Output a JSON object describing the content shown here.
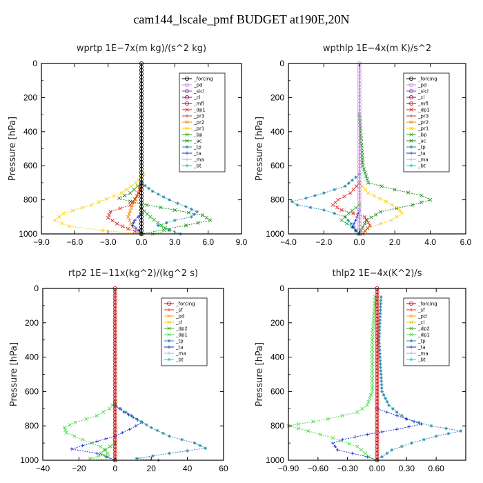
{
  "title": "cam144_lscale_pmf  BUDGET at190E,20N",
  "colors": {
    "forcing": "#000000",
    "forcing2": "#cc0000",
    "pd": "#cc88dd",
    "sicl": "#7744bb",
    "cl": "#880044",
    "mfl": "#aa0033",
    "dp1": "#dd2222",
    "pr3": "#cc3311",
    "pr2": "#ee8800",
    "pr1": "#ffcc00",
    "bp": "#22aa22",
    "ac": "#118811",
    "tp": "#2288aa",
    "ta": "#1122cc",
    "ma": "#88bbdd",
    "bt": "#22cccc",
    "sf": "#ee2222",
    "pd2": "#ffaa00",
    "cl2": "#eecc00",
    "dp2": "#33aa33",
    "dp1g": "#44dd44"
  },
  "chart_data": [
    {
      "type": "line",
      "title": "wprtp   1E−7x(m kg)/(s^2 kg)",
      "ylabel": "Pressure [hPa]",
      "xlim": [
        -9,
        9
      ],
      "ylim": [
        1000,
        0
      ],
      "xticks": [
        "-9.0",
        "-6.0",
        "-3.0",
        "0.0",
        "3.0",
        "6.0",
        "9.0"
      ],
      "yticks": [
        "0",
        "200",
        "400",
        "600",
        "800",
        "1000"
      ],
      "legend": [
        "_forcing",
        "_pd",
        "_sicl",
        "_cl",
        "_mfl",
        "_dp1",
        "_pr3",
        "_pr2",
        "_pr1",
        "_bp",
        "_ac",
        "_tp",
        "_ta",
        "_ma",
        "_bt"
      ],
      "legend_position": "top-right",
      "series": [
        {
          "name": "_pr1",
          "color": "pr1",
          "marker": "x",
          "points": [
            [
              0.2,
              650
            ],
            [
              -0.5,
              700
            ],
            [
              -1.8,
              760
            ],
            [
              -4.5,
              830
            ],
            [
              -7.0,
              880
            ],
            [
              -7.8,
              920
            ],
            [
              -6.5,
              955
            ],
            [
              -3.5,
              980
            ],
            [
              0,
              1000
            ]
          ]
        },
        {
          "name": "_pr2",
          "color": "pr2",
          "marker": "x",
          "points": [
            [
              0,
              700
            ],
            [
              -0.3,
              760
            ],
            [
              -0.8,
              830
            ],
            [
              -1.2,
              900
            ],
            [
              -0.8,
              960
            ],
            [
              0,
              1000
            ]
          ]
        },
        {
          "name": "_dp1",
          "color": "dp1",
          "marker": "x",
          "points": [
            [
              0,
              720
            ],
            [
              -0.4,
              780
            ],
            [
              -1.0,
              830
            ],
            [
              -2.8,
              870
            ],
            [
              -3.0,
              905
            ],
            [
              -2.2,
              940
            ],
            [
              -1.2,
              970
            ],
            [
              0,
              1000
            ]
          ]
        },
        {
          "name": "_ac",
          "color": "ac",
          "marker": "x",
          "points": [
            [
              0,
              700
            ],
            [
              -1.0,
              760
            ],
            [
              -2.0,
              790
            ],
            [
              -1.0,
              810
            ],
            [
              0.5,
              830
            ],
            [
              3.0,
              860
            ],
            [
              5.5,
              890
            ],
            [
              6.2,
              920
            ],
            [
              4.0,
              950
            ],
            [
              2.0,
              975
            ],
            [
              0,
              1000
            ]
          ]
        },
        {
          "name": "_tp",
          "color": "tp",
          "marker": "star",
          "points": [
            [
              0,
              700
            ],
            [
              1.0,
              750
            ],
            [
              2.5,
              800
            ],
            [
              4.0,
              840
            ],
            [
              5.0,
              870
            ],
            [
              4.5,
              900
            ],
            [
              3.0,
              920
            ],
            [
              1.5,
              950
            ],
            [
              2.5,
              975
            ],
            [
              3.5,
              1000
            ]
          ]
        },
        {
          "name": "_ta",
          "color": "ta",
          "marker": "plus",
          "points": [
            [
              0,
              880
            ],
            [
              -0.6,
              920
            ],
            [
              -0.8,
              950
            ],
            [
              -0.2,
              980
            ],
            [
              0,
              1000
            ]
          ]
        },
        {
          "name": "_bp",
          "color": "bp",
          "marker": "x",
          "points": [
            [
              0,
              850
            ],
            [
              0.8,
              900
            ],
            [
              1.8,
              950
            ],
            [
              2.5,
              980
            ],
            [
              1.0,
              1000
            ]
          ]
        },
        {
          "name": "_forcing",
          "color": "forcing",
          "marker": "o",
          "points": [
            [
              0,
              0
            ],
            [
              0,
              1000
            ]
          ]
        }
      ]
    },
    {
      "type": "line",
      "title": "wpthlp   1E−4x(m K)/s^2",
      "ylabel": "Pressure [hPa]",
      "xlim": [
        -4,
        6
      ],
      "ylim": [
        1000,
        0
      ],
      "xticks": [
        "-4.0",
        "-2.0",
        "0.0",
        "2.0",
        "4.0",
        "6.0"
      ],
      "yticks": [
        "0",
        "200",
        "400",
        "600",
        "800",
        "1000"
      ],
      "legend": [
        "_forcing",
        "_pd",
        "_sicl",
        "_cl",
        "_mfl",
        "_dp1",
        "_pr3",
        "_pr2",
        "_pr1",
        "_bp",
        "_ac",
        "_tp",
        "_ta",
        "_ma",
        "_bt"
      ],
      "legend_position": "top-right",
      "series": [
        {
          "name": "_ac",
          "color": "ac",
          "marker": "x",
          "points": [
            [
              0,
              300
            ],
            [
              0.2,
              600
            ],
            [
              0.5,
              700
            ],
            [
              2.0,
              740
            ],
            [
              3.5,
              775
            ],
            [
              4.0,
              800
            ],
            [
              3.0,
              830
            ],
            [
              1.2,
              870
            ],
            [
              0.4,
              920
            ],
            [
              0.2,
              960
            ],
            [
              0,
              1000
            ]
          ]
        },
        {
          "name": "_tp",
          "color": "tp",
          "marker": "star",
          "points": [
            [
              0,
              650
            ],
            [
              -0.8,
              720
            ],
            [
              -2.0,
              760
            ],
            [
              -3.0,
              790
            ],
            [
              -3.8,
              810
            ],
            [
              -3.5,
              830
            ],
            [
              -2.0,
              860
            ],
            [
              -0.8,
              900
            ],
            [
              -0.3,
              960
            ],
            [
              -0.1,
              1000
            ]
          ]
        },
        {
          "name": "_pr1",
          "color": "pr1",
          "marker": "x",
          "points": [
            [
              0,
              700
            ],
            [
              0.5,
              760
            ],
            [
              1.5,
              810
            ],
            [
              2.2,
              850
            ],
            [
              2.4,
              880
            ],
            [
              1.8,
              920
            ],
            [
              0.6,
              960
            ],
            [
              0,
              1000
            ]
          ]
        },
        {
          "name": "_dp1",
          "color": "dp1",
          "marker": "x",
          "points": [
            [
              0,
              700
            ],
            [
              -0.5,
              760
            ],
            [
              -1.2,
              800
            ],
            [
              -1.5,
              830
            ],
            [
              -1.0,
              860
            ],
            [
              0.3,
              900
            ],
            [
              0.6,
              950
            ],
            [
              0.2,
              1000
            ]
          ]
        },
        {
          "name": "_bp",
          "color": "bp",
          "marker": "x",
          "points": [
            [
              0,
              830
            ],
            [
              -0.6,
              880
            ],
            [
              -1.0,
              920
            ],
            [
              -0.4,
              960
            ],
            [
              0,
              1000
            ]
          ]
        },
        {
          "name": "_ta",
          "color": "ta",
          "marker": "plus",
          "points": [
            [
              0,
              860
            ],
            [
              -0.2,
              920
            ],
            [
              -0.4,
              960
            ],
            [
              0,
              1000
            ]
          ]
        },
        {
          "name": "_forcing",
          "color": "pd",
          "marker": "o",
          "points": [
            [
              0,
              0
            ],
            [
              0,
              1000
            ]
          ]
        }
      ]
    },
    {
      "type": "line",
      "title": "rtp2   1E−11x(kg^2)/(kg^2 s)",
      "ylabel": "Pressure [hPa]",
      "xlim": [
        -40,
        60
      ],
      "ylim": [
        1000,
        0
      ],
      "xticks": [
        "-40",
        "-20",
        "0",
        "20",
        "40",
        "60"
      ],
      "yticks": [
        "0",
        "200",
        "400",
        "600",
        "800",
        "1000"
      ],
      "legend": [
        "_forcing",
        "_sf",
        "_pd",
        "_cl",
        "_dp2",
        "_dp1",
        "_tp",
        "_ta",
        "_ma",
        "_bt"
      ],
      "legend_position": "top-right",
      "series": [
        {
          "name": "_dp1",
          "color": "dp1g",
          "marker": "x",
          "points": [
            [
              0,
              660
            ],
            [
              -3,
              700
            ],
            [
              -10,
              740
            ],
            [
              -22,
              780
            ],
            [
              -28,
              810
            ],
            [
              -27,
              840
            ],
            [
              -18,
              880
            ],
            [
              -8,
              920
            ],
            [
              -4,
              960
            ],
            [
              -14,
              990
            ],
            [
              0,
              1000
            ]
          ]
        },
        {
          "name": "_ta",
          "color": "ta",
          "marker": "plus",
          "points": [
            [
              0,
              680
            ],
            [
              5,
              720
            ],
            [
              10,
              750
            ],
            [
              15,
              780
            ],
            [
              8,
              820
            ],
            [
              0,
              860
            ],
            [
              -10,
              890
            ],
            [
              -18,
              915
            ],
            [
              -24,
              935
            ],
            [
              -10,
              960
            ],
            [
              0,
              1000
            ]
          ]
        },
        {
          "name": "_tp",
          "color": "tp",
          "marker": "star",
          "points": [
            [
              0,
              680
            ],
            [
              6,
              720
            ],
            [
              12,
              760
            ],
            [
              20,
              810
            ],
            [
              30,
              860
            ],
            [
              44,
              900
            ],
            [
              50,
              930
            ],
            [
              30,
              960
            ],
            [
              12,
              990
            ],
            [
              24,
              1000
            ]
          ]
        },
        {
          "name": "_dp2",
          "color": "dp2",
          "marker": "x",
          "points": [
            [
              0,
              900
            ],
            [
              -8,
              960
            ],
            [
              0,
              1000
            ]
          ]
        },
        {
          "name": "_forcing",
          "color": "forcing2",
          "marker": "o",
          "points": [
            [
              0,
              0
            ],
            [
              0,
              1000
            ]
          ]
        }
      ]
    },
    {
      "type": "line",
      "title": "thlp2   1E−4x(K^2)/s",
      "ylabel": "Pressure [hPa]",
      "xlim": [
        -0.9,
        0.9
      ],
      "ylim": [
        1000,
        0
      ],
      "xticks": [
        "-0.90",
        "-0.60",
        "-0.30",
        "0.00",
        "0.30",
        "0.60"
      ],
      "yticks": [
        "0",
        "200",
        "400",
        "600",
        "800",
        "1000"
      ],
      "legend": [
        "_forcing",
        "_sf",
        "_pd",
        "_cl",
        "_dp2",
        "_dp1",
        "_tp",
        "_ta",
        "_ma",
        "_bt"
      ],
      "legend_position": "top-right",
      "series": [
        {
          "name": "_tp",
          "color": "tp",
          "marker": "star",
          "points": [
            [
              0.04,
              50
            ],
            [
              0.02,
              300
            ],
            [
              0.05,
              600
            ],
            [
              0.12,
              680
            ],
            [
              0.2,
              720
            ],
            [
              0.3,
              760
            ],
            [
              0.55,
              800
            ],
            [
              0.85,
              830
            ],
            [
              0.6,
              860
            ],
            [
              0.35,
              900
            ],
            [
              0.15,
              940
            ],
            [
              0.05,
              980
            ],
            [
              0,
              1000
            ]
          ]
        },
        {
          "name": "_ta",
          "color": "ta",
          "marker": "plus",
          "points": [
            [
              0,
              700
            ],
            [
              0.1,
              720
            ],
            [
              0.3,
              760
            ],
            [
              0.45,
              790
            ],
            [
              0.2,
              820
            ],
            [
              -0.1,
              850
            ],
            [
              -0.35,
              880
            ],
            [
              -0.45,
              900
            ],
            [
              -0.4,
              940
            ],
            [
              -0.1,
              980
            ],
            [
              0,
              1000
            ]
          ]
        },
        {
          "name": "_dp1",
          "color": "dp1g",
          "marker": "x",
          "points": [
            [
              -0.02,
              50
            ],
            [
              -0.05,
              300
            ],
            [
              -0.05,
              600
            ],
            [
              -0.1,
              680
            ],
            [
              -0.2,
              720
            ],
            [
              -0.5,
              760
            ],
            [
              -0.8,
              790
            ],
            [
              -0.9,
              800
            ],
            [
              -0.7,
              830
            ],
            [
              -0.45,
              870
            ],
            [
              -0.2,
              920
            ],
            [
              -0.08,
              980
            ],
            [
              0,
              1000
            ]
          ]
        },
        {
          "name": "_forcing",
          "color": "forcing2",
          "marker": "o",
          "points": [
            [
              0,
              0
            ],
            [
              0,
              1000
            ]
          ]
        }
      ]
    }
  ]
}
